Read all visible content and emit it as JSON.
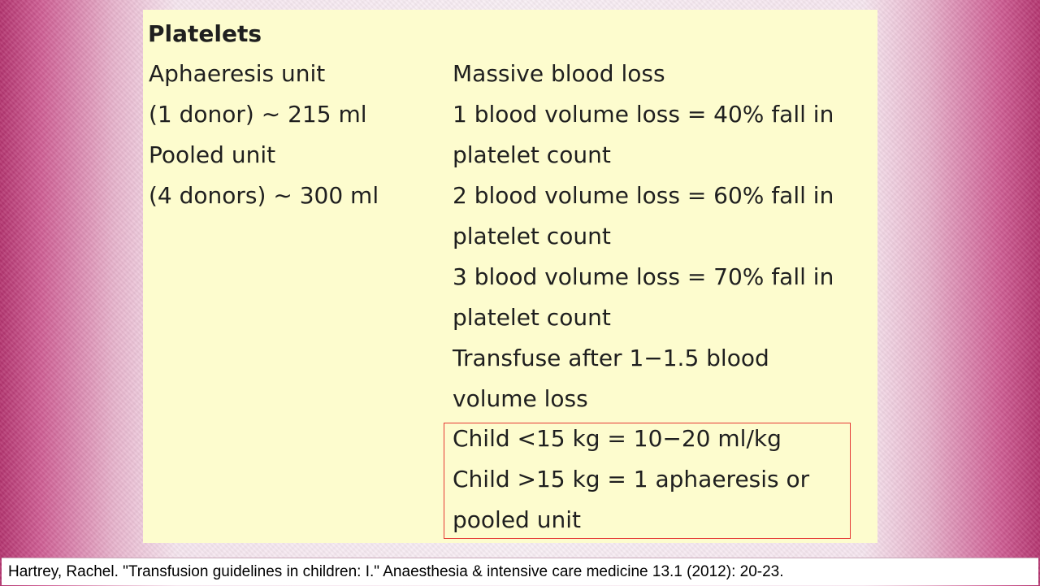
{
  "panel": {
    "title": "Platelets",
    "left_lines": [
      "Aphaeresis unit",
      "(1 donor) ∼ 215 ml",
      "Pooled unit",
      "(4 donors) ∼ 300 ml"
    ],
    "right_lines": [
      "Massive blood loss",
      "1 blood volume loss = 40% fall in",
      "platelet count",
      "2 blood volume loss = 60% fall in",
      "platelet count",
      "3 blood volume loss = 70% fall in",
      "platelet count",
      "Transfuse after 1−1.5 blood",
      "volume loss"
    ],
    "highlighted_lines": [
      "Child <15 kg = 10−20 ml/kg",
      "Child >15 kg = 1 aphaeresis or",
      "pooled unit"
    ]
  },
  "citation": "Hartrey, Rachel. \"Transfusion guidelines in children: I.\" Anaesthesia & intensive care medicine 13.1 (2012): 20-23.",
  "colors": {
    "panel_background": "#fdfcce",
    "highlight_border": "#e53935",
    "frame_magenta": "#b4346f"
  }
}
